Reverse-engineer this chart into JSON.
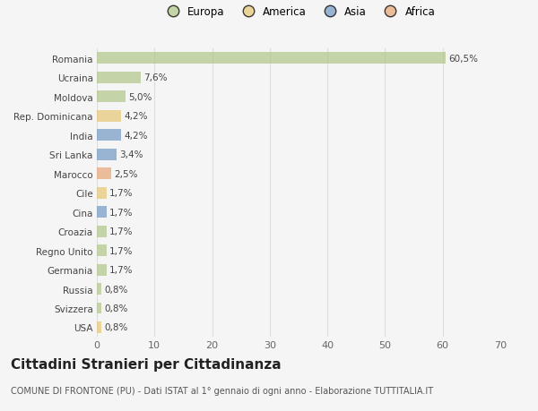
{
  "categories": [
    "Romania",
    "Ucraina",
    "Moldova",
    "Rep. Dominicana",
    "India",
    "Sri Lanka",
    "Marocco",
    "Cile",
    "Cina",
    "Croazia",
    "Regno Unito",
    "Germania",
    "Russia",
    "Svizzera",
    "USA"
  ],
  "values": [
    60.5,
    7.6,
    5.0,
    4.2,
    4.2,
    3.4,
    2.5,
    1.7,
    1.7,
    1.7,
    1.7,
    1.7,
    0.8,
    0.8,
    0.8
  ],
  "labels": [
    "60,5%",
    "7,6%",
    "5,0%",
    "4,2%",
    "4,2%",
    "3,4%",
    "2,5%",
    "1,7%",
    "1,7%",
    "1,7%",
    "1,7%",
    "1,7%",
    "0,8%",
    "0,8%",
    "0,8%"
  ],
  "bar_colors": [
    "#b5c98e",
    "#b5c98e",
    "#b5c98e",
    "#e8c97a",
    "#7b9fc7",
    "#7b9fc7",
    "#e8a97a",
    "#e8c97a",
    "#7b9fc7",
    "#b5c98e",
    "#b5c98e",
    "#b5c98e",
    "#b5c98e",
    "#b5c98e",
    "#e8c97a"
  ],
  "legend_labels": [
    "Europa",
    "America",
    "Asia",
    "Africa"
  ],
  "legend_colors": [
    "#b5c98e",
    "#e8c97a",
    "#7b9fc7",
    "#e8a97a"
  ],
  "xlim": [
    0,
    70
  ],
  "xticks": [
    0,
    10,
    20,
    30,
    40,
    50,
    60,
    70
  ],
  "title": "Cittadini Stranieri per Cittadinanza",
  "subtitle": "COMUNE DI FRONTONE (PU) - Dati ISTAT al 1° gennaio di ogni anno - Elaborazione TUTTITALIA.IT",
  "bg_color": "#f5f5f5",
  "grid_color": "#dddddd",
  "bar_alpha": 0.75,
  "label_fontsize": 7.5,
  "ytick_fontsize": 7.5,
  "xtick_fontsize": 8,
  "title_fontsize": 11,
  "subtitle_fontsize": 7,
  "legend_fontsize": 8.5
}
